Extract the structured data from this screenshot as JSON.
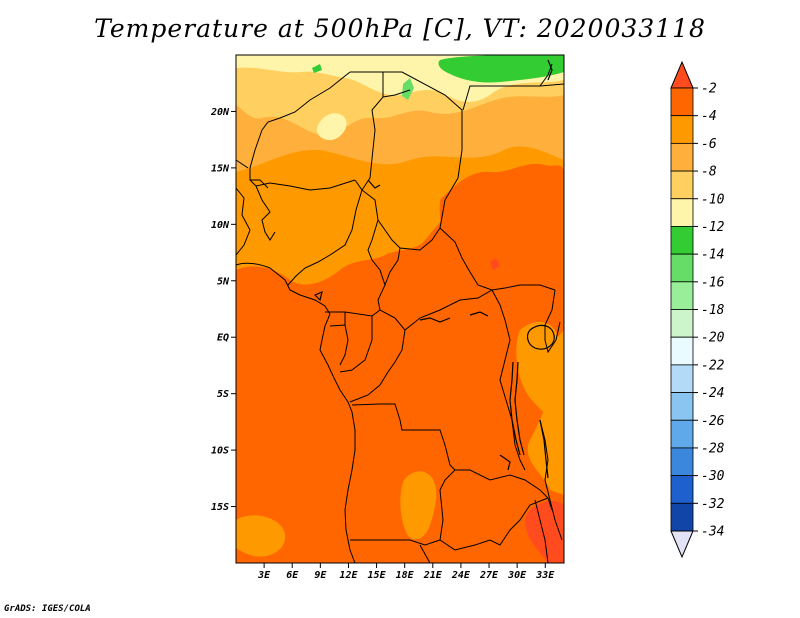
{
  "title": "Temperature at 500hPa [C], VT: 2020033118",
  "credit": "GrADS: IGES/COLA",
  "map": {
    "lon_range": [
      0,
      35
    ],
    "lat_range": [
      -20,
      25
    ],
    "lat_ticks": [
      {
        "v": 20,
        "label": "20N"
      },
      {
        "v": 15,
        "label": "15N"
      },
      {
        "v": 10,
        "label": "10N"
      },
      {
        "v": 5,
        "label": "5N"
      },
      {
        "v": 0,
        "label": "EQ"
      },
      {
        "v": -5,
        "label": "5S"
      },
      {
        "v": -10,
        "label": "10S"
      },
      {
        "v": -15,
        "label": "15S"
      }
    ],
    "lon_ticks": [
      {
        "v": 3,
        "label": "3E"
      },
      {
        "v": 6,
        "label": "6E"
      },
      {
        "v": 9,
        "label": "9E"
      },
      {
        "v": 12,
        "label": "12E"
      },
      {
        "v": 15,
        "label": "15E"
      },
      {
        "v": 18,
        "label": "18E"
      },
      {
        "v": 21,
        "label": "21E"
      },
      {
        "v": 24,
        "label": "24E"
      },
      {
        "v": 27,
        "label": "27E"
      },
      {
        "v": 30,
        "label": "30E"
      },
      {
        "v": 33,
        "label": "33E"
      }
    ]
  },
  "colorbar": {
    "labels": [
      "-2",
      "-4",
      "-6",
      "-8",
      "-10",
      "-12",
      "-14",
      "-16",
      "-18",
      "-20",
      "-22",
      "-24",
      "-26",
      "-28",
      "-30",
      "-32",
      "-34"
    ],
    "colors_top_to_bottom": [
      "#ff4b1e",
      "#ff6600",
      "#ff9900",
      "#ffb03c",
      "#ffd060",
      "#fff5aa",
      "#33cc33",
      "#66dd66",
      "#99ee99",
      "#ccf5cc",
      "#eafbff",
      "#b3dbf7",
      "#89c5f0",
      "#5fa8ea",
      "#3b87de",
      "#1e60cd",
      "#1245a8",
      "#0a1a80",
      "#e3e3f8"
    ]
  },
  "colors": {
    "t_m2": "#ff4b1e",
    "t_m4": "#ff6600",
    "t_m6": "#ff9900",
    "t_m8": "#ffb03c",
    "t_m10": "#ffd060",
    "t_m12": "#fff5aa",
    "t_m14": "#33cc33",
    "t_m16": "#66dd66",
    "border": "#000000"
  }
}
